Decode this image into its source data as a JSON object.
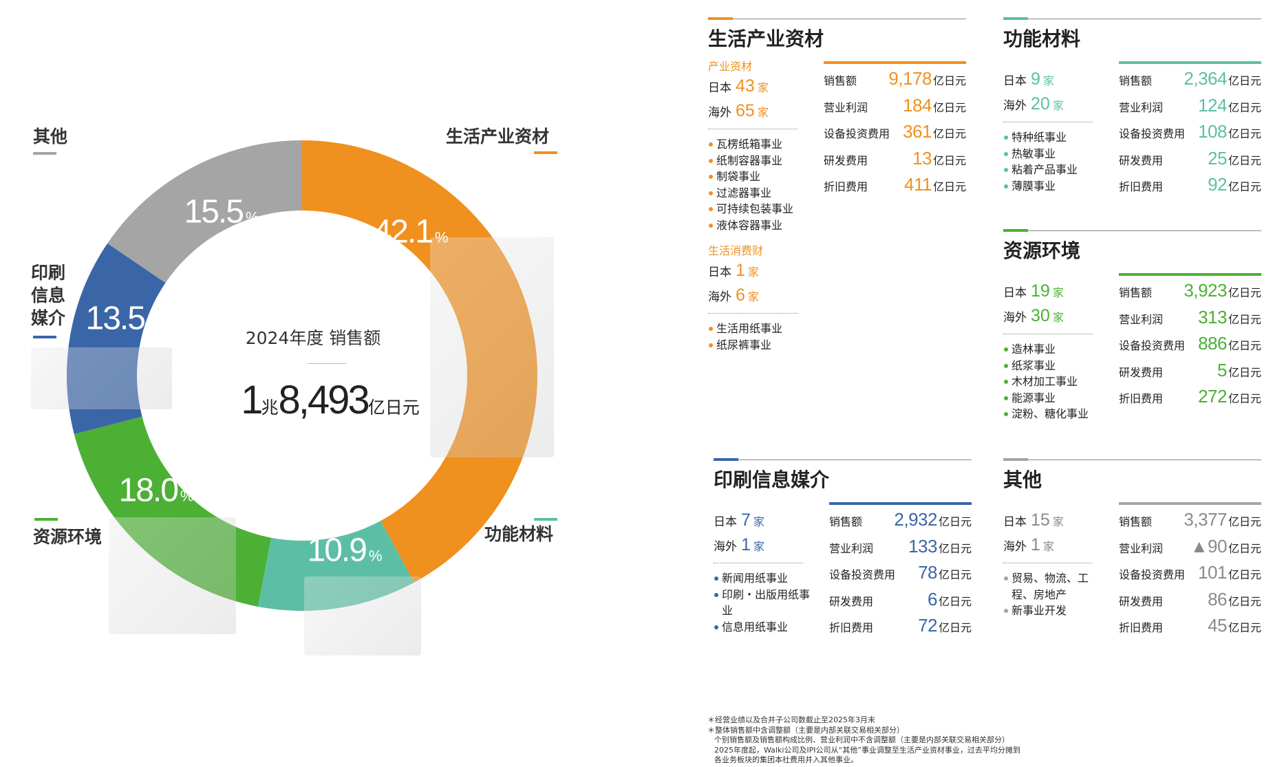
{
  "colors": {
    "orange": "#f0901e",
    "teal": "#5cbfa5",
    "green": "#4cb035",
    "blue": "#3a66a8",
    "gray": "#a5a5a5"
  },
  "chart_data": {
    "type": "pie",
    "title": "2024年度 销售额",
    "total": {
      "prefix": "1",
      "prefix_unit": "兆",
      "value": "8,493",
      "unit": "亿日元"
    },
    "categories": [
      "生活产业资材",
      "功能材料",
      "资源环境",
      "印刷信息媒介",
      "其他"
    ],
    "values": [
      42.1,
      10.9,
      18.0,
      13.5,
      15.5
    ],
    "labels": [
      "42.1",
      "10.9",
      "18.0",
      "13.5",
      "15.5"
    ],
    "pct_unit": "%",
    "colors": [
      "#f0901e",
      "#5cbfa5",
      "#4cb035",
      "#3a66a8",
      "#a5a5a5"
    ],
    "donut": true
  },
  "donut_labels": {
    "life": "生活产业资材",
    "func": "功能材料",
    "res": "资源环境",
    "print": "印刷信息媒介",
    "other": "其他"
  },
  "panels": [
    {
      "key": "life",
      "title": "生活产业资材",
      "color": "#f0901e",
      "groups": [
        {
          "sub": "产业资材",
          "japan": {
            "label": "日本",
            "n": "43",
            "u": "家"
          },
          "overseas": {
            "label": "海外",
            "n": "65",
            "u": "家"
          },
          "items": [
            "瓦楞纸箱事业",
            "纸制容器事业",
            "制袋事业",
            "过滤器事业",
            "可持续包装事业",
            "液体容器事业"
          ]
        },
        {
          "sub": "生活消费财",
          "japan": {
            "label": "日本",
            "n": "1",
            "u": "家"
          },
          "overseas": {
            "label": "海外",
            "n": "6",
            "u": "家"
          },
          "items": [
            "生活用纸事业",
            "纸尿裤事业"
          ]
        }
      ],
      "stats": [
        {
          "label": "销售额",
          "value": "9,178",
          "unit": "亿日元"
        },
        {
          "label": "营业利润",
          "value": "184",
          "unit": "亿日元"
        },
        {
          "label": "设备投资费用",
          "value": "361",
          "unit": "亿日元"
        },
        {
          "label": "研发费用",
          "value": "13",
          "unit": "亿日元"
        },
        {
          "label": "折旧费用",
          "value": "411",
          "unit": "亿日元"
        }
      ]
    },
    {
      "key": "func",
      "title": "功能材料",
      "color": "#5cbfa5",
      "groups": [
        {
          "japan": {
            "label": "日本",
            "n": "9",
            "u": "家"
          },
          "overseas": {
            "label": "海外",
            "n": "20",
            "u": "家"
          },
          "items": [
            "特种纸事业",
            "热敏事业",
            "粘着产品事业",
            "薄膜事业"
          ]
        }
      ],
      "stats": [
        {
          "label": "销售额",
          "value": "2,364",
          "unit": "亿日元"
        },
        {
          "label": "营业利润",
          "value": "124",
          "unit": "亿日元"
        },
        {
          "label": "设备投资费用",
          "value": "108",
          "unit": "亿日元"
        },
        {
          "label": "研发费用",
          "value": "25",
          "unit": "亿日元"
        },
        {
          "label": "折旧费用",
          "value": "92",
          "unit": "亿日元"
        }
      ]
    },
    {
      "key": "res",
      "title": "资源环境",
      "color": "#4cb035",
      "groups": [
        {
          "japan": {
            "label": "日本",
            "n": "19",
            "u": "家"
          },
          "overseas": {
            "label": "海外",
            "n": "30",
            "u": "家"
          },
          "items": [
            "造林事业",
            "纸浆事业",
            "木材加工事业",
            "能源事业",
            "淀粉、糖化事业"
          ]
        }
      ],
      "stats": [
        {
          "label": "销售额",
          "value": "3,923",
          "unit": "亿日元"
        },
        {
          "label": "营业利润",
          "value": "313",
          "unit": "亿日元"
        },
        {
          "label": "设备投资费用",
          "value": "886",
          "unit": "亿日元"
        },
        {
          "label": "研发费用",
          "value": "5",
          "unit": "亿日元"
        },
        {
          "label": "折旧费用",
          "value": "272",
          "unit": "亿日元"
        }
      ]
    },
    {
      "key": "print",
      "title": "印刷信息媒介",
      "color": "#3a66a8",
      "groups": [
        {
          "japan": {
            "label": "日本",
            "n": "7",
            "u": "家"
          },
          "overseas": {
            "label": "海外",
            "n": "1",
            "u": "家"
          },
          "items": [
            "新闻用纸事业",
            "印刷・出版用纸事业",
            "信息用纸事业"
          ]
        }
      ],
      "stats": [
        {
          "label": "销售额",
          "value": "2,932",
          "unit": "亿日元"
        },
        {
          "label": "营业利润",
          "value": "133",
          "unit": "亿日元"
        },
        {
          "label": "设备投资费用",
          "value": "78",
          "unit": "亿日元"
        },
        {
          "label": "研发费用",
          "value": "6",
          "unit": "亿日元"
        },
        {
          "label": "折旧费用",
          "value": "72",
          "unit": "亿日元"
        }
      ]
    },
    {
      "key": "other",
      "title": "其他",
      "color": "#8a8a8a",
      "line": "#a5a5a5",
      "groups": [
        {
          "japan": {
            "label": "日本",
            "n": "15",
            "u": "家"
          },
          "overseas": {
            "label": "海外",
            "n": "1",
            "u": "家"
          },
          "items": [
            "贸易、物流、工程、房地产",
            "新事业开发"
          ]
        }
      ],
      "stats": [
        {
          "label": "销售额",
          "value": "3,377",
          "unit": "亿日元"
        },
        {
          "label": "营业利润",
          "value": "▲90",
          "unit": "亿日元"
        },
        {
          "label": "设备投资费用",
          "value": "101",
          "unit": "亿日元"
        },
        {
          "label": "研发费用",
          "value": "86",
          "unit": "亿日元"
        },
        {
          "label": "折旧费用",
          "value": "45",
          "unit": "亿日元"
        }
      ]
    }
  ],
  "notes": [
    "＊经营业绩以及合并子公司数截止至2025年3月末",
    "＊整体销售额中含调整额（主要是内部关联交易相关部分）",
    "个别销售额及销售额构成比例、营业利润中不含调整额（主要是内部关联交易相关部分）",
    "2025年度起，Walki公司及IPI公司从“其他”事业调整至生活产业资材事业，过去平均分摊到",
    "各业务板块的集团本社费用并入其他事业。"
  ]
}
